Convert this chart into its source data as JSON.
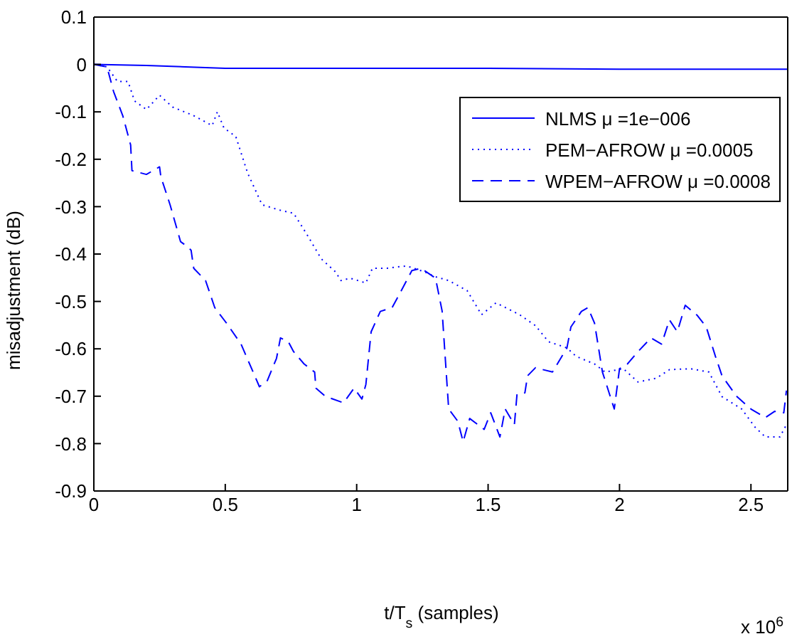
{
  "chart_data": {
    "type": "line",
    "xlabel": "t/T$_{s}$ (samples)",
    "ylabel": "misadjustment (dB)",
    "annotations": [
      "x 10$^{6}$"
    ],
    "xlim": [
      0,
      2.64
    ],
    "xticks": [
      0,
      0.5,
      1,
      1.5,
      2,
      2.5
    ],
    "ylim": [
      -0.9,
      0.1
    ],
    "yticks": [
      -0.9,
      -0.8,
      -0.7,
      -0.6,
      -0.5,
      -0.4,
      -0.3,
      -0.2,
      -0.1,
      0,
      0.1
    ],
    "legend": "top right",
    "marker": "none",
    "series": [
      {
        "name": "NLMS μ =1e−006",
        "color": "#0000ff",
        "line_style": "solid",
        "x": [
          0,
          0.2,
          0.5,
          1,
          1.5,
          2,
          2.64
        ],
        "values": [
          0,
          -0.002,
          -0.008,
          -0.008,
          -0.008,
          -0.01,
          -0.01
        ]
      },
      {
        "name": "PEM−AFROW μ =0.0005",
        "color": "#0000ff",
        "line_style": "dotted",
        "x": [
          0,
          0.05,
          0.09,
          0.13,
          0.155,
          0.2,
          0.25,
          0.3,
          0.38,
          0.45,
          0.47,
          0.495,
          0.54,
          0.585,
          0.64,
          0.705,
          0.76,
          0.81,
          0.865,
          0.92,
          0.94,
          0.975,
          1.035,
          1.06,
          1.115,
          1.19,
          1.26,
          1.3,
          1.35,
          1.42,
          1.475,
          1.53,
          1.62,
          1.68,
          1.73,
          1.8,
          1.835,
          1.905,
          1.945,
          2.015,
          2.07,
          2.14,
          2.19,
          2.27,
          2.34,
          2.39,
          2.465,
          2.515,
          2.555,
          2.61,
          2.635
        ],
        "values": [
          0,
          -0.005,
          -0.036,
          -0.036,
          -0.077,
          -0.095,
          -0.065,
          -0.09,
          -0.108,
          -0.129,
          -0.1,
          -0.134,
          -0.152,
          -0.229,
          -0.296,
          -0.307,
          -0.314,
          -0.358,
          -0.41,
          -0.438,
          -0.456,
          -0.451,
          -0.461,
          -0.43,
          -0.43,
          -0.425,
          -0.438,
          -0.448,
          -0.456,
          -0.477,
          -0.528,
          -0.503,
          -0.528,
          -0.551,
          -0.585,
          -0.598,
          -0.616,
          -0.632,
          -0.649,
          -0.642,
          -0.67,
          -0.662,
          -0.644,
          -0.642,
          -0.649,
          -0.701,
          -0.727,
          -0.765,
          -0.786,
          -0.786,
          -0.76
        ]
      },
      {
        "name": "WPEM−AFROW μ =0.0008",
        "color": "#0000ff",
        "line_style": "dashed",
        "x": [
          0,
          0.05,
          0.075,
          0.11,
          0.14,
          0.145,
          0.2,
          0.25,
          0.255,
          0.29,
          0.33,
          0.355,
          0.37,
          0.38,
          0.425,
          0.46,
          0.505,
          0.56,
          0.63,
          0.66,
          0.695,
          0.71,
          0.74,
          0.76,
          0.8,
          0.84,
          0.845,
          0.88,
          0.95,
          0.99,
          1.02,
          1.035,
          1.055,
          1.09,
          1.135,
          1.17,
          1.21,
          1.245,
          1.3,
          1.325,
          1.35,
          1.385,
          1.405,
          1.43,
          1.485,
          1.51,
          1.545,
          1.565,
          1.6,
          1.61,
          1.64,
          1.65,
          1.68,
          1.745,
          1.8,
          1.815,
          1.855,
          1.88,
          1.905,
          1.935,
          1.98,
          2.0,
          2.03,
          2.07,
          2.12,
          2.16,
          2.19,
          2.22,
          2.25,
          2.295,
          2.33,
          2.365,
          2.39,
          2.445,
          2.5,
          2.555,
          2.59,
          2.625,
          2.635
        ],
        "values": [
          0,
          -0.005,
          -0.057,
          -0.108,
          -0.17,
          -0.224,
          -0.232,
          -0.216,
          -0.237,
          -0.296,
          -0.374,
          -0.384,
          -0.392,
          -0.43,
          -0.456,
          -0.513,
          -0.546,
          -0.59,
          -0.68,
          -0.667,
          -0.62,
          -0.577,
          -0.585,
          -0.606,
          -0.632,
          -0.649,
          -0.683,
          -0.7,
          -0.714,
          -0.683,
          -0.706,
          -0.675,
          -0.564,
          -0.521,
          -0.513,
          -0.477,
          -0.435,
          -0.43,
          -0.451,
          -0.52,
          -0.727,
          -0.753,
          -0.796,
          -0.747,
          -0.77,
          -0.735,
          -0.786,
          -0.727,
          -0.76,
          -0.696,
          -0.693,
          -0.657,
          -0.64,
          -0.649,
          -0.598,
          -0.554,
          -0.521,
          -0.513,
          -0.546,
          -0.649,
          -0.727,
          -0.642,
          -0.632,
          -0.606,
          -0.577,
          -0.59,
          -0.539,
          -0.564,
          -0.508,
          -0.529,
          -0.554,
          -0.616,
          -0.657,
          -0.7,
          -0.727,
          -0.745,
          -0.732,
          -0.735,
          -0.688
        ]
      }
    ]
  }
}
